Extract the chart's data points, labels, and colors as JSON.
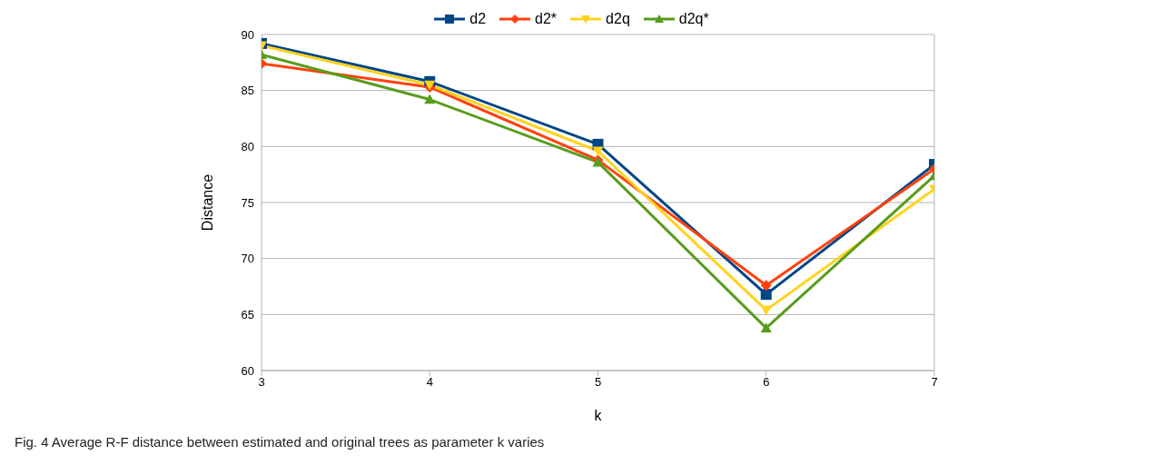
{
  "chart_data": {
    "type": "line",
    "xlabel": "k",
    "ylabel": "Distance",
    "x": [
      3,
      4,
      5,
      6,
      7
    ],
    "series": [
      {
        "name": "d2",
        "color": "#004586",
        "marker": "square",
        "values": [
          89.2,
          85.8,
          80.2,
          66.8,
          78.4
        ]
      },
      {
        "name": "d2*",
        "color": "#ff420e",
        "marker": "diamond",
        "values": [
          87.4,
          85.3,
          78.8,
          67.6,
          78.0
        ]
      },
      {
        "name": "d2q",
        "color": "#ffd320",
        "marker": "triangle-down",
        "values": [
          89.0,
          85.5,
          79.6,
          65.4,
          76.2
        ]
      },
      {
        "name": "d2q*",
        "color": "#579d1c",
        "marker": "triangle",
        "values": [
          88.2,
          84.2,
          78.6,
          63.8,
          77.4
        ]
      }
    ],
    "xlim": [
      3,
      7
    ],
    "xticks": [
      3,
      4,
      5,
      6,
      7
    ],
    "ylim": [
      60,
      90
    ],
    "yticks": [
      60,
      65,
      70,
      75,
      80,
      85,
      90
    ],
    "grid": "y",
    "legend": "top",
    "line_style": "solid",
    "annotations": [
      "Fig. 4 Average R-F distance between estimated and original trees as parameter k varies"
    ]
  }
}
